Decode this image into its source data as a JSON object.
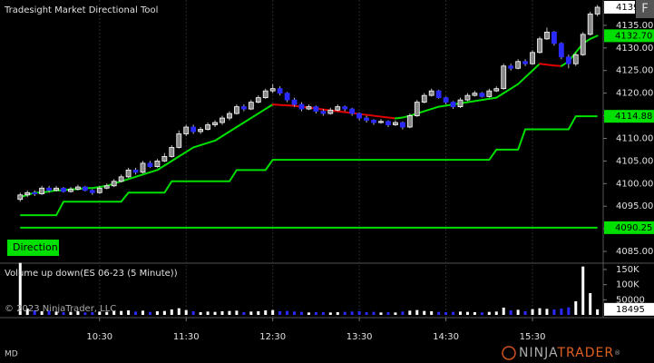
{
  "chart_data": {
    "type": "candlestick",
    "title": "Tradesight Market Directional Tool",
    "button": "F",
    "direction_label": "Direction",
    "volume_title": "Volume up down(ES 06-23 (5 Minute))",
    "copyright": "© 2023 NinjaTrader, LLC",
    "footer_left": "MD",
    "logo": {
      "left": "NINJA",
      "right": "TRADER",
      "mark": "®"
    },
    "up_color": "#ffffff",
    "down_color": "#2a2aff",
    "grid": true,
    "xlim": [
      561,
      979
    ],
    "xticks": [
      {
        "value": 630,
        "label": "10:30"
      },
      {
        "value": 690,
        "label": "11:30"
      },
      {
        "value": 750,
        "label": "12:30"
      },
      {
        "value": 810,
        "label": "13:30"
      },
      {
        "value": 870,
        "label": "14:30"
      },
      {
        "value": 930,
        "label": "15:30"
      }
    ],
    "ylim": [
      4082.4,
      4140.6
    ],
    "yticks": [
      {
        "value": 4085,
        "label": "4085.00"
      },
      {
        "value": 4090,
        "label": "4090.00"
      },
      {
        "value": 4095,
        "label": "4095.00"
      },
      {
        "value": 4100,
        "label": "4100.00"
      },
      {
        "value": 4105,
        "label": "4105.00"
      },
      {
        "value": 4110,
        "label": "4110.00"
      },
      {
        "value": 4115,
        "label": "4115.00"
      },
      {
        "value": 4120,
        "label": "4120.00"
      },
      {
        "value": 4125,
        "label": "4125.00"
      },
      {
        "value": 4130,
        "label": "4130.00"
      },
      {
        "value": 4135,
        "label": "4135.00"
      }
    ],
    "last_price_label": "4139",
    "x": [
      575,
      580,
      585,
      590,
      595,
      600,
      605,
      610,
      615,
      620,
      625,
      630,
      635,
      640,
      645,
      650,
      655,
      660,
      665,
      670,
      675,
      680,
      685,
      690,
      695,
      700,
      705,
      710,
      715,
      720,
      725,
      730,
      735,
      740,
      745,
      750,
      755,
      760,
      765,
      770,
      775,
      780,
      785,
      790,
      795,
      800,
      805,
      810,
      815,
      820,
      825,
      830,
      835,
      840,
      845,
      850,
      855,
      860,
      865,
      870,
      875,
      880,
      885,
      890,
      895,
      900,
      905,
      910,
      915,
      920,
      925,
      930,
      935,
      940,
      945,
      950,
      955,
      960,
      965,
      970,
      975
    ],
    "candles": [
      [
        4096.5,
        4098,
        4096,
        4097.5
      ],
      [
        4097.5,
        4098.5,
        4097,
        4098
      ],
      [
        4098,
        4098.5,
        4097.25,
        4097.75
      ],
      [
        4097.75,
        4099.5,
        4097.5,
        4099
      ],
      [
        4099,
        4099.5,
        4098,
        4098.5
      ],
      [
        4098.5,
        4099.5,
        4098.25,
        4099
      ],
      [
        4099,
        4099.25,
        4098,
        4098.25
      ],
      [
        4098.25,
        4099.25,
        4098,
        4098.75
      ],
      [
        4098.75,
        4099.75,
        4098.5,
        4099.25
      ],
      [
        4099.25,
        4099.5,
        4098.25,
        4098.5
      ],
      [
        4098.5,
        4098.75,
        4097.5,
        4098
      ],
      [
        4098,
        4099.5,
        4097.75,
        4099
      ],
      [
        4099,
        4100,
        4098.75,
        4099.5
      ],
      [
        4099.5,
        4101,
        4099.25,
        4100.5
      ],
      [
        4100.5,
        4102,
        4100.25,
        4101.5
      ],
      [
        4101.5,
        4103.5,
        4101.25,
        4103
      ],
      [
        4103,
        4103.5,
        4102,
        4102.5
      ],
      [
        4102.5,
        4105,
        4102.25,
        4104.5
      ],
      [
        4104.5,
        4105,
        4103.5,
        4103.75
      ],
      [
        4103.75,
        4105.5,
        4103.5,
        4105
      ],
      [
        4105,
        4106.75,
        4104.75,
        4106
      ],
      [
        4106,
        4108.5,
        4105.75,
        4108
      ],
      [
        4108,
        4111.75,
        4107.75,
        4111
      ],
      [
        4111,
        4113,
        4110.5,
        4112.5
      ],
      [
        4112.5,
        4113,
        4111,
        4111.5
      ],
      [
        4111.5,
        4112.5,
        4111,
        4112
      ],
      [
        4112,
        4113.5,
        4111.75,
        4113
      ],
      [
        4113,
        4114,
        4112.5,
        4113.5
      ],
      [
        4113.5,
        4115,
        4113,
        4114.5
      ],
      [
        4114.5,
        4116,
        4114,
        4115.5
      ],
      [
        4115.5,
        4117.5,
        4115.25,
        4117
      ],
      [
        4117,
        4117.5,
        4116,
        4116.5
      ],
      [
        4116.5,
        4118.5,
        4116.25,
        4118
      ],
      [
        4118,
        4119.5,
        4117.75,
        4119
      ],
      [
        4119,
        4121,
        4118.75,
        4120.5
      ],
      [
        4120.5,
        4122,
        4120,
        4121
      ],
      [
        4121,
        4121.5,
        4119.5,
        4120
      ],
      [
        4120,
        4120.25,
        4118,
        4118.5
      ],
      [
        4118.5,
        4119,
        4117,
        4117.5
      ],
      [
        4117.5,
        4118,
        4116,
        4116.5
      ],
      [
        4116.5,
        4117.5,
        4116.25,
        4117
      ],
      [
        4117,
        4117.25,
        4115.5,
        4116
      ],
      [
        4116,
        4116.5,
        4115,
        4115.5
      ],
      [
        4115.5,
        4116.75,
        4115.25,
        4116.25
      ],
      [
        4116.25,
        4117.5,
        4116,
        4117
      ],
      [
        4117,
        4117.25,
        4116,
        4116.5
      ],
      [
        4116.5,
        4116.75,
        4115,
        4115.5
      ],
      [
        4115.5,
        4115.75,
        4114,
        4114.5
      ],
      [
        4114.5,
        4115,
        4113.5,
        4114
      ],
      [
        4114,
        4114.25,
        4113,
        4113.5
      ],
      [
        4113.5,
        4114.25,
        4113.25,
        4113.75
      ],
      [
        4113.75,
        4114,
        4112.5,
        4113
      ],
      [
        4113,
        4114,
        4112.75,
        4113.5
      ],
      [
        4113.5,
        4113.75,
        4112,
        4112.5
      ],
      [
        4112.5,
        4115.5,
        4112.25,
        4115
      ],
      [
        4115,
        4118.5,
        4114.75,
        4118
      ],
      [
        4118,
        4120,
        4117.75,
        4119.5
      ],
      [
        4119.5,
        4121,
        4119.25,
        4120.5
      ],
      [
        4120.5,
        4120.75,
        4118.75,
        4119
      ],
      [
        4119,
        4119.25,
        4117.5,
        4118
      ],
      [
        4118,
        4118.25,
        4116.5,
        4117
      ],
      [
        4117,
        4119,
        4116.75,
        4118.5
      ],
      [
        4118.5,
        4120,
        4118.25,
        4119.5
      ],
      [
        4119.5,
        4120.5,
        4119.25,
        4120
      ],
      [
        4120,
        4120.25,
        4119,
        4119.25
      ],
      [
        4119.25,
        4121,
        4119,
        4120.5
      ],
      [
        4120.5,
        4121.5,
        4120.25,
        4121
      ],
      [
        4121,
        4126.5,
        4120.75,
        4126
      ],
      [
        4126,
        4126.5,
        4125,
        4125.5
      ],
      [
        4125.5,
        4127.5,
        4125.25,
        4127
      ],
      [
        4127,
        4127.5,
        4126,
        4126.5
      ],
      [
        4126.5,
        4129.5,
        4126.25,
        4129
      ],
      [
        4129,
        4132.5,
        4128.75,
        4132
      ],
      [
        4132,
        4134.5,
        4131.75,
        4133.5
      ],
      [
        4133.5,
        4133.75,
        4130.5,
        4131
      ],
      [
        4131,
        4131.25,
        4127.5,
        4128
      ],
      [
        4128,
        4128.5,
        4125.5,
        4126.5
      ],
      [
        4126.5,
        4129,
        4126,
        4128.5
      ],
      [
        4128.5,
        4133.5,
        4128.25,
        4133
      ],
      [
        4133,
        4138,
        4132.75,
        4137.5
      ],
      [
        4137.5,
        4139.5,
        4137,
        4139
      ]
    ],
    "series": [
      {
        "values": [
          4097,
          4097.5,
          4098,
          4098,
          4098.25,
          4098.5,
          4098.5,
          4098.75,
          4098.75,
          4099,
          4099,
          4099.25,
          4099.5,
          4100,
          4100.5,
          4101,
          4101.5,
          4102,
          4102.5,
          4103,
          4104,
          4105,
          4106,
          4107,
          4108,
          4108.5,
          4109,
          4109.5,
          4110.5,
          4111.5,
          4112.5,
          4113.5,
          4114.5,
          4115.5,
          4116.5,
          4117.5,
          4117.4,
          4117.3,
          4117.2,
          4117,
          4116.8,
          4116.6,
          4116.4,
          4116.2,
          4116,
          4115.8,
          4115.6,
          4115.4,
          4115.2,
          4115,
          4114.8,
          4114.6,
          4114.4,
          4114.6,
          4115,
          4115.5,
          4116,
          4116.5,
          4117,
          4117.25,
          4117.5,
          4117.75,
          4118,
          4118.25,
          4118.5,
          4118.75,
          4119,
          4120,
          4121,
          4122,
          4123.5,
          4125,
          4126.5,
          4126.3,
          4126.1,
          4126,
          4127,
          4129,
          4131,
          4132,
          4132.7
        ],
        "color": "#00e000",
        "down_color": "#e00000",
        "last_value_label": "4132.70"
      },
      {
        "values": [
          4093,
          4093,
          4093,
          4093,
          4093,
          4093,
          4096,
          4096,
          4096,
          4096,
          4096,
          4096,
          4096,
          4096,
          4096,
          4098,
          4098,
          4098,
          4098,
          4098,
          4098,
          4100.5,
          4100.5,
          4100.5,
          4100.5,
          4100.5,
          4100.5,
          4100.5,
          4100.5,
          4100.5,
          4103,
          4103,
          4103,
          4103,
          4103,
          4105.25,
          4105.25,
          4105.25,
          4105.25,
          4105.25,
          4105.25,
          4105.25,
          4105.25,
          4105.25,
          4105.25,
          4105.25,
          4105.25,
          4105.25,
          4105.25,
          4105.25,
          4105.25,
          4105.25,
          4105.25,
          4105.25,
          4105.25,
          4105.25,
          4105.25,
          4105.25,
          4105.25,
          4105.25,
          4105.25,
          4105.25,
          4105.25,
          4105.25,
          4105.25,
          4105.25,
          4107.5,
          4107.5,
          4107.5,
          4107.5,
          4112,
          4112,
          4112,
          4112,
          4112,
          4112,
          4112,
          4114.88,
          4114.88,
          4114.88,
          4114.88
        ],
        "color": "#00e000",
        "last_value_label": "4114.88"
      },
      {
        "values": [
          4090.25,
          4090.25,
          4090.25,
          4090.25,
          4090.25,
          4090.25,
          4090.25,
          4090.25,
          4090.25,
          4090.25,
          4090.25,
          4090.25,
          4090.25,
          4090.25,
          4090.25,
          4090.25,
          4090.25,
          4090.25,
          4090.25,
          4090.25,
          4090.25,
          4090.25,
          4090.25,
          4090.25,
          4090.25,
          4090.25,
          4090.25,
          4090.25,
          4090.25,
          4090.25,
          4090.25,
          4090.25,
          4090.25,
          4090.25,
          4090.25,
          4090.25,
          4090.25,
          4090.25,
          4090.25,
          4090.25,
          4090.25,
          4090.25,
          4090.25,
          4090.25,
          4090.25,
          4090.25,
          4090.25,
          4090.25,
          4090.25,
          4090.25,
          4090.25,
          4090.25,
          4090.25,
          4090.25,
          4090.25,
          4090.25,
          4090.25,
          4090.25,
          4090.25,
          4090.25,
          4090.25,
          4090.25,
          4090.25,
          4090.25,
          4090.25,
          4090.25,
          4090.25,
          4090.25,
          4090.25,
          4090.25,
          4090.25,
          4090.25,
          4090.25,
          4090.25,
          4090.25,
          4090.25,
          4090.25,
          4090.25,
          4090.25,
          4090.25,
          4090.25
        ],
        "color": "#00e000",
        "last_value_label": "4090.25"
      }
    ],
    "volume": [
      172000,
      21000,
      15000,
      12000,
      14000,
      11000,
      9000,
      10000,
      12000,
      8000,
      9000,
      11000,
      10000,
      12000,
      13000,
      15000,
      11000,
      14000,
      10000,
      12000,
      13000,
      18000,
      22000,
      16000,
      12000,
      9000,
      11000,
      10000,
      12000,
      13000,
      14000,
      9000,
      11000,
      12000,
      15000,
      16000,
      12000,
      13000,
      11000,
      10000,
      8000,
      9000,
      9000,
      8000,
      9000,
      10000,
      11000,
      12000,
      9000,
      10000,
      8000,
      9000,
      8000,
      11000,
      14000,
      16000,
      13000,
      12000,
      10000,
      9000,
      10000,
      11000,
      10000,
      9000,
      8000,
      10000,
      11000,
      24000,
      15000,
      17000,
      12000,
      19000,
      22000,
      20000,
      18000,
      21000,
      25000,
      45000,
      160000,
      72000,
      18495
    ],
    "vlim": [
      0,
      165000
    ],
    "vticks": [
      {
        "value": 150000,
        "label": "150K"
      },
      {
        "value": 100000,
        "label": "100K"
      },
      {
        "value": 50000,
        "label": "50000"
      }
    ]
  }
}
